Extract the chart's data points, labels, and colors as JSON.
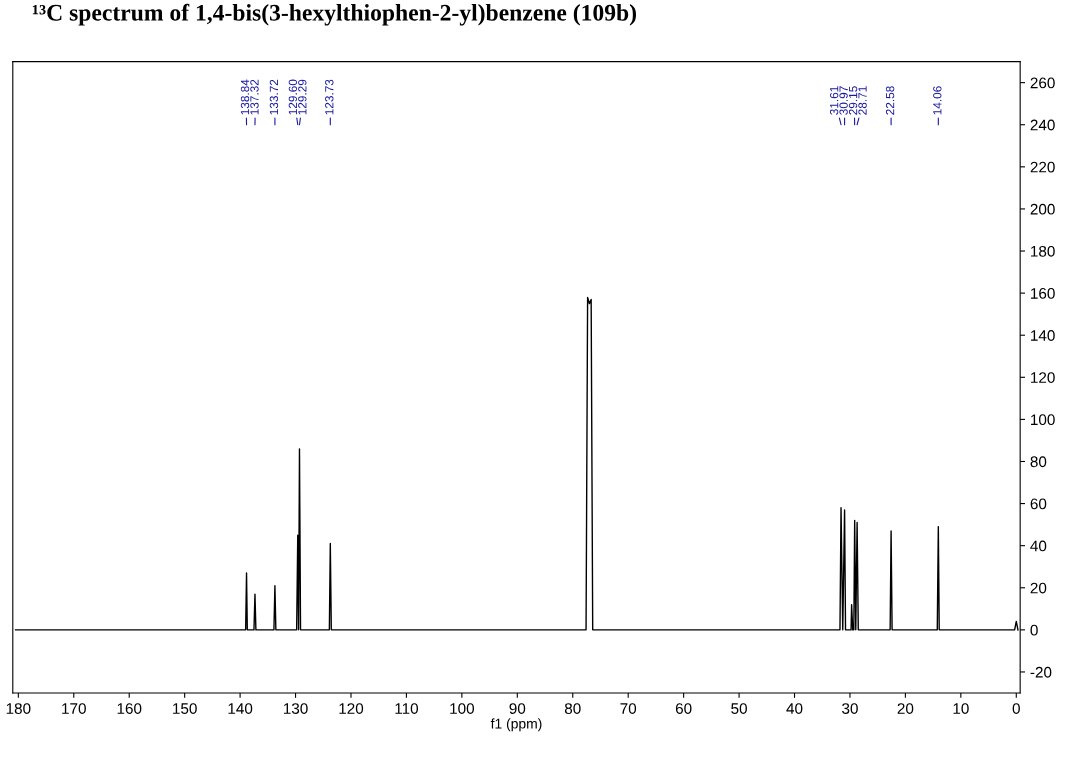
{
  "chart_data": {
    "type": "line",
    "title": "¹³C spectrum of 1,4-bis(3-hexylthiophen-2-yl)benzene (109b)",
    "xlabel": "f1 (ppm)",
    "series": [
      {
        "color": "#000000",
        "x": [
          180.5,
          160,
          140,
          139.0,
          138.84,
          138.7,
          137.5,
          137.32,
          137.15,
          133.9,
          133.72,
          133.55,
          129.8,
          129.6,
          129.45,
          129.29,
          129.1,
          123.9,
          123.73,
          123.55,
          100,
          77.6,
          77.32,
          77.0,
          76.68,
          76.4,
          50,
          31.8,
          31.61,
          31.3,
          30.97,
          30.8,
          29.8,
          29.7,
          29.5,
          29.3,
          29.15,
          28.95,
          28.71,
          28.5,
          22.75,
          22.58,
          22.4,
          14.25,
          14.06,
          13.9,
          1.0,
          0.3,
          0.0,
          -0.3
        ],
        "values": [
          0,
          0,
          0,
          0,
          27,
          0,
          0,
          17,
          0,
          0,
          21,
          0,
          0,
          45,
          0,
          86,
          0,
          0,
          41,
          0,
          0,
          0,
          158,
          155,
          157,
          0,
          0,
          0,
          58,
          0,
          57,
          0,
          0,
          12,
          0,
          0,
          52,
          0,
          51,
          0,
          0,
          47,
          0,
          0,
          49,
          0,
          0,
          0,
          4,
          0
        ]
      }
    ],
    "annotations": [
      {
        "text": "138.84",
        "x": 138.84
      },
      {
        "text": "137.32",
        "x": 137.32
      },
      {
        "text": "133.72",
        "x": 133.72
      },
      {
        "text": "129.60",
        "x": 129.6
      },
      {
        "text": "129.29",
        "x": 129.29
      },
      {
        "text": "123.73",
        "x": 123.73
      },
      {
        "text": "31.61",
        "x": 31.61
      },
      {
        "text": "30.97",
        "x": 30.97
      },
      {
        "text": "29.15",
        "x": 29.15
      },
      {
        "text": "28.71",
        "x": 28.71
      },
      {
        "text": "22.58",
        "x": 22.58
      },
      {
        "text": "14.06",
        "x": 14.06
      }
    ],
    "xlim": [
      181,
      -0.7
    ],
    "xticks": [
      180,
      170,
      160,
      150,
      140,
      130,
      120,
      110,
      100,
      90,
      80,
      70,
      60,
      50,
      40,
      30,
      20,
      10,
      0
    ],
    "ylim": [
      -30,
      270
    ],
    "yticks": [
      -20,
      0,
      20,
      40,
      60,
      80,
      100,
      120,
      140,
      160,
      180,
      200,
      220,
      240,
      260
    ],
    "grid": false,
    "legend": false,
    "marker": "none",
    "line_style": "solid"
  }
}
